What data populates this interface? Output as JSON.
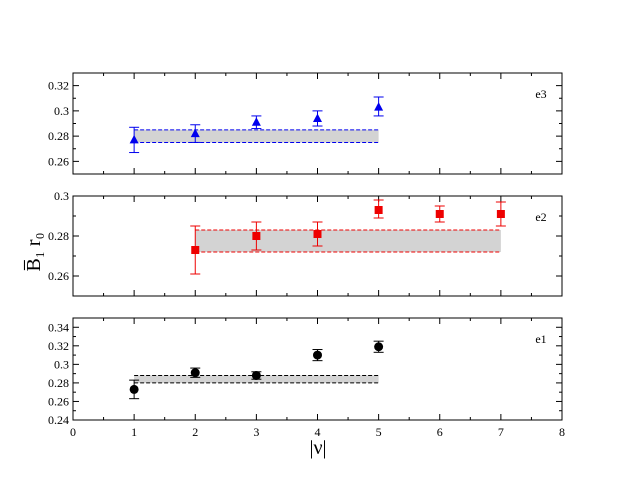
{
  "chart_data": {
    "type": "scatter",
    "xlabel": "|ν|",
    "ylabel": "B̅₁ r₀",
    "x_ticks": [
      "0",
      "1",
      "2",
      "3",
      "4",
      "5",
      "6",
      "7",
      "8"
    ],
    "xlim": [
      0,
      8
    ],
    "panels": [
      {
        "label": "e3",
        "color": "#0000ee",
        "marker": "triangle",
        "ylim": [
          0.25,
          0.33
        ],
        "y_ticks": [
          "0.26",
          "0.28",
          "0.3",
          "0.32"
        ],
        "points": [
          {
            "x": 1,
            "y": 0.277,
            "lo": 0.267,
            "hi": 0.287
          },
          {
            "x": 2,
            "y": 0.282,
            "lo": 0.275,
            "hi": 0.289
          },
          {
            "x": 3,
            "y": 0.291,
            "lo": 0.286,
            "hi": 0.296
          },
          {
            "x": 4,
            "y": 0.294,
            "lo": 0.288,
            "hi": 0.3
          },
          {
            "x": 5,
            "y": 0.303,
            "lo": 0.296,
            "hi": 0.311
          }
        ],
        "band": {
          "x_start": 1,
          "x_end": 5,
          "low": 0.275,
          "high": 0.285
        }
      },
      {
        "label": "e2",
        "color": "#ee0000",
        "marker": "square",
        "ylim": [
          0.25,
          0.3
        ],
        "y_ticks": [
          "0.26",
          "0.28",
          "0.3"
        ],
        "points": [
          {
            "x": 2,
            "y": 0.273,
            "lo": 0.261,
            "hi": 0.285
          },
          {
            "x": 3,
            "y": 0.28,
            "lo": 0.273,
            "hi": 0.287
          },
          {
            "x": 4,
            "y": 0.281,
            "lo": 0.275,
            "hi": 0.287
          },
          {
            "x": 5,
            "y": 0.293,
            "lo": 0.289,
            "hi": 0.298
          },
          {
            "x": 6,
            "y": 0.291,
            "lo": 0.287,
            "hi": 0.295
          },
          {
            "x": 7,
            "y": 0.291,
            "lo": 0.285,
            "hi": 0.297
          }
        ],
        "band": {
          "x_start": 2,
          "x_end": 7,
          "low": 0.272,
          "high": 0.283
        }
      },
      {
        "label": "e1",
        "color": "#000000",
        "marker": "circle",
        "ylim": [
          0.24,
          0.35
        ],
        "y_ticks": [
          "0.24",
          "0.26",
          "0.28",
          "0.3",
          "0.32",
          "0.34"
        ],
        "points": [
          {
            "x": 1,
            "y": 0.273,
            "lo": 0.263,
            "hi": 0.283
          },
          {
            "x": 2,
            "y": 0.291,
            "lo": 0.286,
            "hi": 0.296
          },
          {
            "x": 3,
            "y": 0.288,
            "lo": 0.284,
            "hi": 0.292
          },
          {
            "x": 4,
            "y": 0.31,
            "lo": 0.304,
            "hi": 0.316
          },
          {
            "x": 5,
            "y": 0.319,
            "lo": 0.313,
            "hi": 0.325
          }
        ],
        "band": {
          "x_start": 1,
          "x_end": 5,
          "low": 0.28,
          "high": 0.288
        }
      }
    ]
  }
}
